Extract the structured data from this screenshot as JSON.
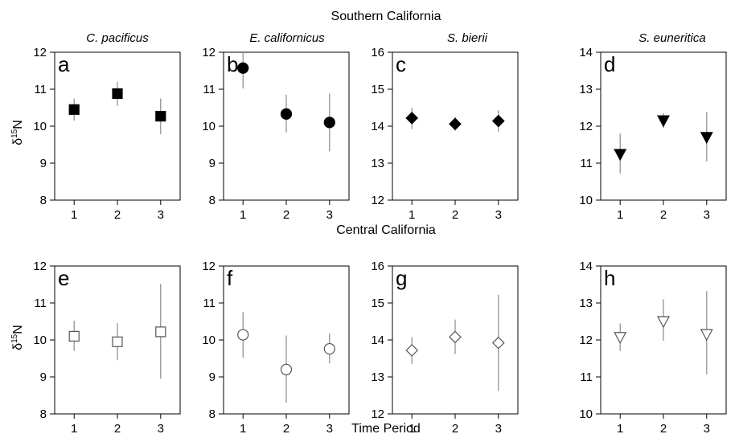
{
  "figure": {
    "region_titles": [
      "Southern California",
      "Central California"
    ],
    "species": [
      "C. pacificus",
      "E. californicus",
      "S. bierii",
      "S. euneritica"
    ],
    "xlabel": "Time Period",
    "ylabel_main": "δ",
    "ylabel_sup": "15",
    "ylabel_rest": "N"
  },
  "chart_data": [
    {
      "type": "scatter",
      "panel": "a",
      "region": "Southern California",
      "species": "C. pacificus",
      "marker": "square",
      "filled": true,
      "x": [
        1,
        2,
        3
      ],
      "y": [
        10.45,
        10.88,
        10.27
      ],
      "err_low": [
        10.15,
        10.55,
        9.78
      ],
      "err_high": [
        10.75,
        11.2,
        10.75
      ],
      "ylim": [
        8,
        12
      ],
      "yticks": [
        8,
        9,
        10,
        11,
        12
      ],
      "xticks": [
        1,
        2,
        3
      ]
    },
    {
      "type": "scatter",
      "panel": "b",
      "region": "Southern California",
      "species": "E. californicus",
      "marker": "circle",
      "filled": true,
      "x": [
        1,
        2,
        3
      ],
      "y": [
        11.57,
        10.33,
        10.1
      ],
      "err_low": [
        11.02,
        9.83,
        9.32
      ],
      "err_high": [
        12.0,
        10.85,
        10.88
      ],
      "ylim": [
        8,
        12
      ],
      "yticks": [
        8,
        9,
        10,
        11,
        12
      ],
      "xticks": [
        1,
        2,
        3
      ]
    },
    {
      "type": "scatter",
      "panel": "c",
      "region": "Southern California",
      "species": "S. bierii",
      "marker": "diamond",
      "filled": true,
      "x": [
        1,
        2,
        3
      ],
      "y": [
        14.22,
        14.06,
        14.14
      ],
      "err_low": [
        13.92,
        13.88,
        13.85
      ],
      "err_high": [
        14.5,
        14.25,
        14.43
      ],
      "ylim": [
        12,
        16
      ],
      "yticks": [
        12,
        13,
        14,
        15,
        16
      ],
      "xticks": [
        1,
        2,
        3
      ]
    },
    {
      "type": "scatter",
      "panel": "d",
      "region": "Southern California",
      "species": "S. euneritica",
      "marker": "triangle-down",
      "filled": true,
      "x": [
        1,
        2,
        3
      ],
      "y": [
        11.24,
        12.15,
        11.7
      ],
      "err_low": [
        10.72,
        11.95,
        11.05
      ],
      "err_high": [
        11.8,
        12.35,
        12.38
      ],
      "ylim": [
        10,
        14
      ],
      "yticks": [
        10,
        11,
        12,
        13,
        14
      ],
      "xticks": [
        1,
        2,
        3
      ]
    },
    {
      "type": "scatter",
      "panel": "e",
      "region": "Central California",
      "species": "C. pacificus",
      "marker": "square",
      "filled": false,
      "x": [
        1,
        2,
        3
      ],
      "y": [
        10.1,
        9.95,
        10.22
      ],
      "err_low": [
        9.7,
        9.45,
        8.95
      ],
      "err_high": [
        10.52,
        10.45,
        11.52
      ],
      "ylim": [
        8,
        12
      ],
      "yticks": [
        8,
        9,
        10,
        11,
        12
      ],
      "xticks": [
        1,
        2,
        3
      ]
    },
    {
      "type": "scatter",
      "panel": "f",
      "region": "Central California",
      "species": "E. californicus",
      "marker": "circle",
      "filled": false,
      "x": [
        1,
        2,
        3
      ],
      "y": [
        10.14,
        9.2,
        9.76
      ],
      "err_low": [
        9.52,
        8.3,
        9.37
      ],
      "err_high": [
        10.75,
        10.12,
        10.18
      ],
      "ylim": [
        8,
        12
      ],
      "yticks": [
        8,
        9,
        10,
        11,
        12
      ],
      "xticks": [
        1,
        2,
        3
      ]
    },
    {
      "type": "scatter",
      "panel": "g",
      "region": "Central California",
      "species": "S. bierii",
      "marker": "diamond",
      "filled": false,
      "x": [
        1,
        2,
        3
      ],
      "y": [
        13.72,
        14.08,
        13.92
      ],
      "err_low": [
        13.35,
        13.62,
        12.62
      ],
      "err_high": [
        14.08,
        14.55,
        15.22
      ],
      "ylim": [
        12,
        16
      ],
      "yticks": [
        12,
        13,
        14,
        15,
        16
      ],
      "xticks": [
        1,
        2,
        3
      ]
    },
    {
      "type": "scatter",
      "panel": "h",
      "region": "Central California",
      "species": "S. euneritica",
      "marker": "triangle-down",
      "filled": false,
      "x": [
        1,
        2,
        3
      ],
      "y": [
        12.07,
        12.5,
        12.15
      ],
      "err_low": [
        11.7,
        11.98,
        11.07
      ],
      "err_high": [
        12.45,
        13.1,
        13.32
      ],
      "ylim": [
        10,
        14
      ],
      "yticks": [
        10,
        11,
        12,
        13,
        14
      ],
      "xticks": [
        1,
        2,
        3
      ]
    }
  ]
}
